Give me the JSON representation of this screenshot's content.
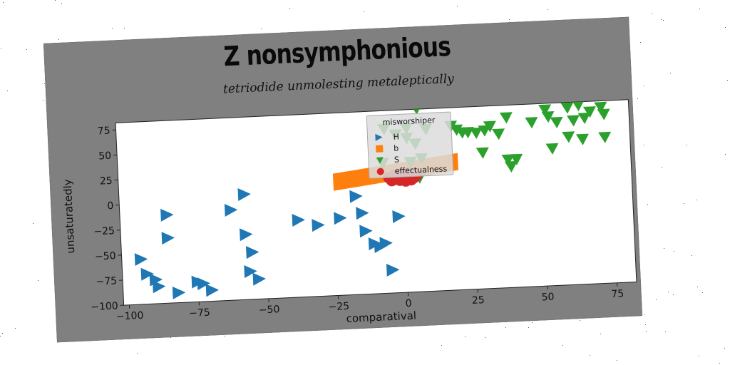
{
  "chart_data": {
    "type": "scatter",
    "title": "Z nonsymphonious",
    "subtitle": "tetriodide unmolesting metaleptically",
    "xlabel": "comparatival",
    "ylabel": "unsaturatedly",
    "xlim": [
      -102,
      82
    ],
    "ylim": [
      -100,
      82
    ],
    "xticks": [
      "−100",
      "−75",
      "−50",
      "−25",
      "0",
      "25",
      "50",
      "75"
    ],
    "yticks": [
      "75",
      "50",
      "25",
      "0",
      "−25",
      "−50",
      "−75",
      "−100"
    ],
    "grid": false,
    "legend_title": "misworshiper",
    "legend_position": "upper-center",
    "series": [
      {
        "name": "H",
        "marker": "triangle-right",
        "color": "#1f77b4",
        "points": [
          [
            -85,
            -12
          ],
          [
            -85,
            -35
          ],
          [
            -62,
            -10
          ],
          [
            -57,
            5
          ],
          [
            -57,
            -35
          ],
          [
            -55,
            -53
          ],
          [
            -56,
            -72
          ],
          [
            -53,
            -80
          ],
          [
            -95,
            -55
          ],
          [
            -93,
            -70
          ],
          [
            -90,
            -76
          ],
          [
            -89,
            -83
          ],
          [
            -82,
            -90
          ],
          [
            -75,
            -80
          ],
          [
            -73,
            -82
          ],
          [
            -70,
            -89
          ],
          [
            -38,
            -23
          ],
          [
            -31,
            -29
          ],
          [
            -23,
            -23
          ],
          [
            -17,
            -2
          ],
          [
            -15,
            -19
          ],
          [
            -14,
            -37
          ],
          [
            -11,
            -50
          ],
          [
            -9,
            -53
          ],
          [
            -7,
            -50
          ],
          [
            -5,
            -77
          ],
          [
            -2,
            -24
          ]
        ]
      },
      {
        "name": "b",
        "marker": "square",
        "color": "#ff7f0e",
        "band": [
          [
            -25,
            13
          ],
          [
            20,
            28
          ]
        ],
        "thickness": 12
      },
      {
        "name": "S",
        "marker": "triangle-down",
        "color": "#2ca02c",
        "points": [
          [
            6,
            83
          ],
          [
            2,
            64
          ],
          [
            9,
            62
          ],
          [
            18,
            64
          ],
          [
            20,
            60
          ],
          [
            22,
            57
          ],
          [
            24,
            57
          ],
          [
            27,
            56
          ],
          [
            30,
            58
          ],
          [
            32,
            62
          ],
          [
            35,
            54
          ],
          [
            38,
            70
          ],
          [
            47,
            64
          ],
          [
            52,
            76
          ],
          [
            53,
            69
          ],
          [
            56,
            63
          ],
          [
            60,
            77
          ],
          [
            62,
            64
          ],
          [
            64,
            79
          ],
          [
            66,
            66
          ],
          [
            68,
            72
          ],
          [
            72,
            76
          ],
          [
            73,
            69
          ],
          [
            60,
            48
          ],
          [
            65,
            45
          ],
          [
            73,
            46
          ],
          [
            54,
            37
          ],
          [
            29,
            36
          ],
          [
            38,
            28
          ],
          [
            41,
            28
          ],
          [
            39,
            21
          ],
          [
            3,
            30
          ],
          [
            7,
            33
          ],
          [
            5,
            48
          ],
          [
            -2,
            58
          ],
          [
            -6,
            64
          ],
          [
            -7,
            30
          ],
          [
            6,
            14
          ],
          [
            2,
            54
          ]
        ]
      },
      {
        "name": "effectualness",
        "marker": "circle",
        "color": "#d62728",
        "points": [
          [
            -4,
            14
          ],
          [
            -2,
            16
          ],
          [
            0,
            18
          ],
          [
            2,
            15
          ],
          [
            -1,
            12
          ],
          [
            1,
            13
          ],
          [
            3,
            17
          ],
          [
            -3,
            17
          ],
          [
            0,
            15
          ],
          [
            4,
            14
          ],
          [
            -5,
            15
          ],
          [
            2,
            19
          ],
          [
            -2,
            13
          ],
          [
            5,
            16
          ],
          [
            1,
            11
          ],
          [
            -1,
            18
          ],
          [
            3,
            12
          ],
          [
            -4,
            12
          ]
        ]
      }
    ]
  }
}
